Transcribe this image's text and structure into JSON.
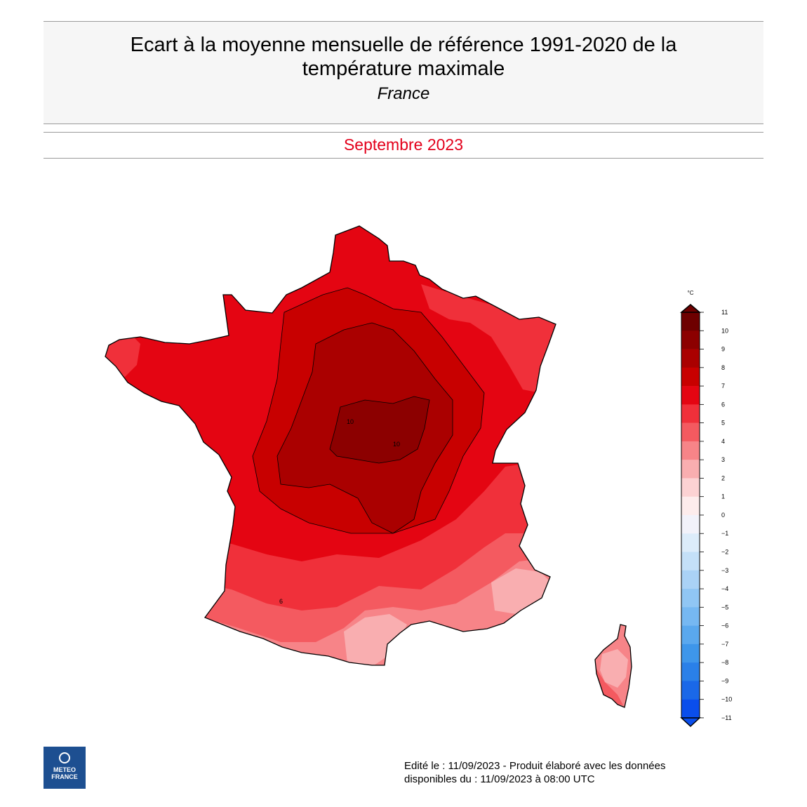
{
  "header": {
    "title_line1": "Ecart à la moyenne mensuelle de référence 1991-2020 de la",
    "title_line2": "température maximale",
    "subtitle": "France",
    "period": "Septembre 2023"
  },
  "legend": {
    "unit": "°C",
    "ticks": [
      "11",
      "10",
      "9",
      "8",
      "7",
      "6",
      "5",
      "4",
      "3",
      "2",
      "1",
      "0",
      "−1",
      "−2",
      "−3",
      "−4",
      "−5",
      "−6",
      "−7",
      "−8",
      "−9",
      "−10",
      "−11"
    ],
    "colors": [
      "#6e0000",
      "#8c0000",
      "#aa0000",
      "#c80000",
      "#e40512",
      "#f0303a",
      "#f45a60",
      "#f78488",
      "#f9aeb0",
      "#fcd2d3",
      "#fdecec",
      "#f2f2fa",
      "#dcecfa",
      "#c4e0f8",
      "#aad2f6",
      "#90c6f4",
      "#76b8f2",
      "#5aa8ee",
      "#3e96ea",
      "#2a80e8",
      "#1a68e8",
      "#0a4eec"
    ]
  },
  "map": {
    "contour_labels": [
      "10",
      "10",
      "6"
    ],
    "colors": {
      "water": "#ffffff",
      "coast": "#000000",
      "anom_10_11": "#8c0000",
      "anom_9_10": "#aa0000",
      "anom_8_9": "#c80000",
      "anom_7_8": "#e40512",
      "anom_6_7": "#f0303a",
      "anom_5_6": "#f45a60",
      "anom_4_5": "#f78488",
      "anom_3_4": "#f9aeb0"
    }
  },
  "logo": {
    "line1": "METEO",
    "line2": "FRANCE"
  },
  "footer": {
    "line1": "Edité le : 11/09/2023 - Produit élaboré avec les données",
    "line2": "disponibles du : 11/09/2023 à 08:00 UTC"
  }
}
